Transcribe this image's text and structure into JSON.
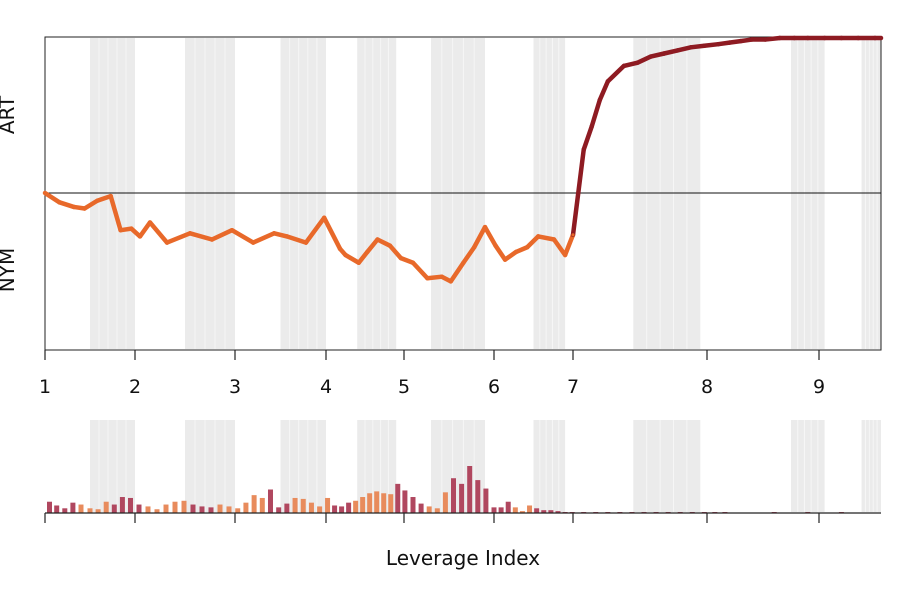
{
  "chart_data": [
    {
      "type": "line",
      "title": "",
      "xlabel": "",
      "ylabel_top": "ART",
      "ylabel_bottom": "NYM",
      "x_ticks": [
        "1",
        "2",
        "3",
        "4",
        "5",
        "6",
        "7",
        "8",
        "9"
      ],
      "ylim": [
        -1,
        1
      ],
      "colors": {
        "negative": "#E8692A",
        "positive": "#8E1B22",
        "shade": "#EBEBEB"
      },
      "series": [
        {
          "x": [
            1.0,
            1.16,
            1.32,
            1.44,
            1.58,
            1.73,
            1.84,
            1.96,
            2.05,
            2.15,
            2.32,
            2.55,
            2.77,
            2.97,
            3.2,
            3.43,
            3.57,
            3.78,
            3.98,
            4.18,
            4.25,
            4.42,
            4.53,
            4.66,
            4.82,
            4.96,
            5.1,
            5.26,
            5.42,
            5.52,
            5.66,
            5.78,
            5.9,
            6.02,
            6.14,
            6.28,
            6.42,
            6.56,
            6.76,
            6.9,
            7.0,
            7.08,
            7.14,
            7.2,
            7.26,
            7.38,
            7.48,
            7.58,
            7.68,
            7.78,
            7.88,
            7.98,
            8.1,
            8.2,
            8.3,
            8.4,
            8.52,
            8.65,
            8.78,
            8.9,
            9.05,
            9.2,
            9.35,
            9.5,
            9.65
          ],
          "y": [
            0.0,
            -0.06,
            -0.09,
            -0.1,
            -0.05,
            -0.02,
            -0.24,
            -0.23,
            -0.28,
            -0.19,
            -0.32,
            -0.26,
            -0.3,
            -0.24,
            -0.32,
            -0.26,
            -0.28,
            -0.32,
            -0.16,
            -0.36,
            -0.4,
            -0.45,
            -0.38,
            -0.3,
            -0.34,
            -0.42,
            -0.45,
            -0.55,
            -0.54,
            -0.57,
            -0.45,
            -0.35,
            -0.22,
            -0.34,
            -0.43,
            -0.38,
            -0.35,
            -0.28,
            -0.3,
            -0.4,
            -0.27,
            0.28,
            0.43,
            0.6,
            0.72,
            0.82,
            0.84,
            0.88,
            0.9,
            0.92,
            0.94,
            0.95,
            0.96,
            0.97,
            0.98,
            0.99,
            0.99,
            1.0,
            1.0,
            1.0,
            1.0,
            1.0,
            1.0,
            1.0,
            1.0
          ]
        }
      ]
    },
    {
      "type": "bar",
      "title": "",
      "xlabel": "Leverage Index",
      "ylabel": "",
      "series": [
        {
          "x": [
            1.05,
            1.13,
            1.22,
            1.31,
            1.4,
            1.5,
            1.59,
            1.68,
            1.77,
            1.86,
            1.95,
            2.04,
            2.13,
            2.22,
            2.31,
            2.4,
            2.49,
            2.58,
            2.67,
            2.76,
            2.85,
            2.94,
            3.03,
            3.12,
            3.21,
            3.3,
            3.39,
            3.48,
            3.57,
            3.66,
            3.75,
            3.84,
            3.93,
            4.02,
            4.11,
            4.2,
            4.29,
            4.38,
            4.47,
            4.56,
            4.65,
            4.74,
            4.83,
            4.92,
            5.01,
            5.1,
            5.19,
            5.28,
            5.37,
            5.46,
            5.55,
            5.64,
            5.73,
            5.82,
            5.91,
            6.0,
            6.09,
            6.18,
            6.27,
            6.36,
            6.45,
            6.54,
            6.63,
            6.72,
            6.81,
            6.9,
            6.99,
            7.08,
            7.17,
            7.26,
            7.35,
            7.44,
            7.53,
            7.62,
            7.71,
            7.8,
            7.89,
            7.98,
            8.07,
            8.16,
            8.6,
            8.9,
            9.2
          ],
          "values": [
            0.12,
            0.08,
            0.05,
            0.11,
            0.09,
            0.05,
            0.04,
            0.12,
            0.09,
            0.17,
            0.16,
            0.09,
            0.07,
            0.04,
            0.09,
            0.12,
            0.13,
            0.09,
            0.07,
            0.06,
            0.09,
            0.07,
            0.05,
            0.11,
            0.19,
            0.16,
            0.25,
            0.06,
            0.1,
            0.16,
            0.15,
            0.11,
            0.07,
            0.16,
            0.08,
            0.07,
            0.11,
            0.13,
            0.17,
            0.21,
            0.23,
            0.21,
            0.2,
            0.31,
            0.24,
            0.17,
            0.1,
            0.07,
            0.05,
            0.22,
            0.37,
            0.31,
            0.5,
            0.35,
            0.26,
            0.06,
            0.06,
            0.12,
            0.06,
            0.02,
            0.08,
            0.05,
            0.03,
            0.03,
            0.02,
            0.01,
            0.01,
            0.005,
            0.005,
            0.005,
            0.005,
            0.005,
            0.005,
            0.005,
            0.005,
            0.005,
            0.005,
            0.005,
            0.005,
            0.005,
            0.005,
            0.005,
            0.005
          ],
          "colors": [
            "#B0475F",
            "#B0475F",
            "#B0475F",
            "#B0475F",
            "#E88B5C",
            "#E88B5C",
            "#E88B5C",
            "#E88B5C",
            "#B0475F",
            "#B0475F",
            "#B0475F",
            "#B0475F",
            "#E88B5C",
            "#E88B5C",
            "#E88B5C",
            "#E88B5C",
            "#E88B5C",
            "#B0475F",
            "#B0475F",
            "#B0475F",
            "#E88B5C",
            "#E88B5C",
            "#E88B5C",
            "#E88B5C",
            "#E88B5C",
            "#E88B5C",
            "#B0475F",
            "#B0475F",
            "#B0475F",
            "#E88B5C",
            "#E88B5C",
            "#E88B5C",
            "#E88B5C",
            "#E88B5C",
            "#B0475F",
            "#B0475F",
            "#B0475F",
            "#E88B5C",
            "#E88B5C",
            "#E88B5C",
            "#E88B5C",
            "#E88B5C",
            "#E88B5C",
            "#B0475F",
            "#B0475F",
            "#B0475F",
            "#B0475F",
            "#E88B5C",
            "#E88B5C",
            "#E88B5C",
            "#B0475F",
            "#B0475F",
            "#B0475F",
            "#B0475F",
            "#B0475F",
            "#B0475F",
            "#B0475F",
            "#B0475F",
            "#E88B5C",
            "#E88B5C",
            "#E88B5C",
            "#B0475F",
            "#B0475F",
            "#B0475F",
            "#B0475F",
            "#B0475F",
            "#B0475F",
            "#B0475F",
            "#B0475F",
            "#B0475F",
            "#B0475F",
            "#B0475F",
            "#B0475F",
            "#B0475F",
            "#B0475F",
            "#B0475F",
            "#B0475F",
            "#B0475F",
            "#B0475F",
            "#B0475F",
            "#B0475F",
            "#B0475F",
            "#B0475F"
          ]
        }
      ]
    }
  ],
  "shade_bands": [
    [
      1.5,
      2.0
    ],
    [
      2.5,
      3.0
    ],
    [
      3.5,
      4.0
    ],
    [
      4.4,
      4.9
    ],
    [
      5.3,
      5.9
    ],
    [
      6.5,
      6.9
    ],
    [
      7.45,
      7.95
    ],
    [
      8.75,
      9.05
    ],
    [
      9.38,
      9.68
    ]
  ]
}
